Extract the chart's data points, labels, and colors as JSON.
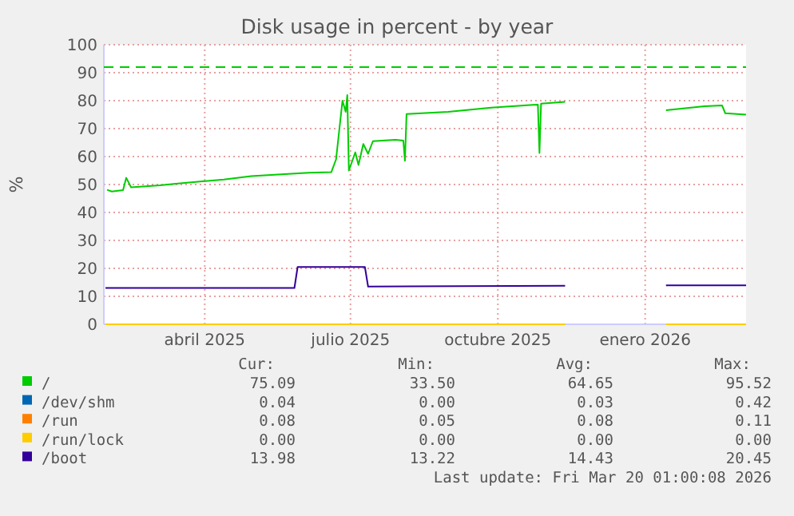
{
  "chart_data": {
    "type": "line",
    "title": "Disk usage in percent - by year",
    "ylabel": "%",
    "xlim": [
      "2025-02-12",
      "2026-03-20"
    ],
    "xticks": [
      {
        "value": "2025-04-16",
        "label": "abril 2025"
      },
      {
        "value": "2025-07-16",
        "label": "julio 2025"
      },
      {
        "value": "2025-10-16",
        "label": "octubre 2025"
      },
      {
        "value": "2026-01-16",
        "label": "enero 2026"
      }
    ],
    "ylim": [
      0,
      100
    ],
    "yticks": [
      0,
      10,
      20,
      30,
      40,
      50,
      60,
      70,
      80,
      90,
      100
    ],
    "grid": true,
    "legend": "bottom",
    "marker": "none",
    "line_style": "solid",
    "ref_lines": [
      {
        "axis": "y",
        "value": 92,
        "color": "#00cc00",
        "line_style": "dashed"
      }
    ],
    "series": [
      {
        "name": "/",
        "color": "#00cc00",
        "x": [
          "2025-02-14",
          "2025-02-17",
          "2025-02-24",
          "2025-02-26",
          "2025-03-01",
          "2025-03-19",
          "2025-03-29",
          "2025-04-28",
          "2025-05-15",
          "2025-06-07",
          "2025-06-20",
          "2025-07-04",
          "2025-07-07",
          "2025-07-11",
          "2025-07-13",
          "2025-07-14",
          "2025-07-15",
          "2025-07-19",
          "2025-07-21",
          "2025-07-24",
          "2025-07-27",
          "2025-07-30",
          "2025-08-13",
          "2025-08-18",
          "2025-08-19",
          "2025-08-20",
          "2025-09-15",
          "2025-10-12",
          "2025-11-07",
          "2025-11-10",
          "2025-11-11",
          "2025-11-12",
          "2025-11-27",
          "2025-12-20",
          "2026-01-29",
          "2026-02-22",
          "2026-03-05",
          "2026-03-07",
          "2026-03-20"
        ],
        "values": [
          48.1,
          47.5,
          48,
          52.4,
          49,
          49.7,
          50.3,
          51.8,
          53,
          53.8,
          54.2,
          54.4,
          59,
          80,
          76,
          82,
          55,
          61.5,
          57,
          64.5,
          61,
          65.5,
          66,
          65.7,
          58.5,
          75.2,
          76,
          77.5,
          78.5,
          78.6,
          61.3,
          78.9,
          79.6,
          null,
          76.6,
          78,
          78.3,
          75.5,
          75
        ]
      },
      {
        "name": "/dev/shm",
        "color": "#0066b3"
      },
      {
        "name": "/run",
        "color": "#ff8000"
      },
      {
        "name": "/run/lock",
        "color": "#ffcc00",
        "x": [
          "2025-02-13",
          "2025-11-27",
          "2025-12-20",
          "2026-01-29",
          "2026-03-20"
        ],
        "values": [
          0,
          0,
          null,
          0,
          0
        ]
      },
      {
        "name": "/boot",
        "color": "#330099",
        "x": [
          "2025-02-13",
          "2025-06-11",
          "2025-06-13",
          "2025-07-25",
          "2025-07-27",
          "2025-11-27",
          "2025-12-20",
          "2026-01-29",
          "2026-03-20"
        ],
        "values": [
          13,
          13,
          20.5,
          20.5,
          13.5,
          13.8,
          null,
          13.9,
          13.9
        ]
      }
    ],
    "annotations": [
      "Cur:",
      "Min:",
      "Avg:",
      "Max:",
      "75.09",
      "33.50",
      "64.65",
      "95.52",
      "0.04",
      "0.00",
      "0.03",
      "0.42",
      "0.08",
      "0.05",
      "0.08",
      "0.11",
      "0.00",
      "0.00",
      "0.00",
      "0.00",
      "13.98",
      "13.22",
      "14.43",
      "20.45",
      "Last update: Fri Mar 20 01:00:08 2026"
    ]
  }
}
